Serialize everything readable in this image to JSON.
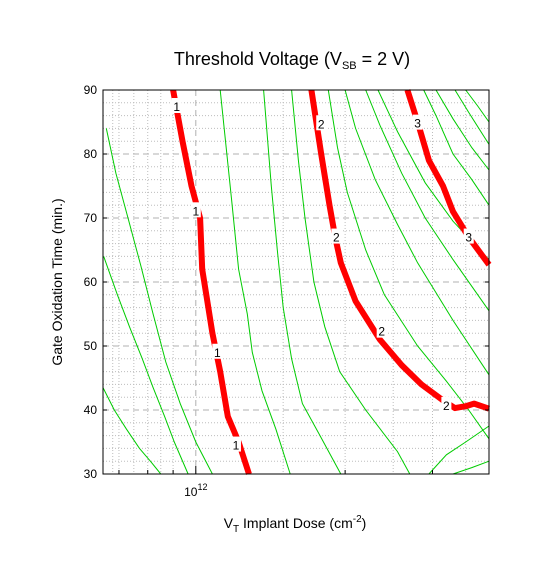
{
  "chart_data": {
    "type": "line",
    "title": {
      "main": "Threshold Voltage (V",
      "sub": "SB",
      "tail": " = 2 V)"
    },
    "xlabel": {
      "main": "V",
      "sub": "T",
      "tail": " Implant Dose (cm",
      "sup": "-2",
      "end": ")"
    },
    "ylabel": "Gate Oxidation Time (min.)",
    "xscale": "log",
    "xlim": [
      650000000000.0,
      3900000000000.0
    ],
    "ylim": [
      30,
      90
    ],
    "x_ticks": [
      {
        "value": 1000000000000.0,
        "base": "10",
        "exp": "12"
      }
    ],
    "x_minor_ticks": [
      700000000000.0,
      800000000000.0,
      900000000000.0,
      2000000000000.0,
      3000000000000.0
    ],
    "y_ticks": [
      30,
      40,
      50,
      60,
      70,
      80,
      90
    ],
    "grid": true,
    "labeled_contours": [
      {
        "name": "1",
        "color": "#ff0000",
        "x": [
          900000000000.0,
          940000000000.0,
          980000000000.0,
          1020000000000.0,
          1030000000000.0,
          1050000000000.0,
          1080000000000.0,
          1120000000000.0,
          1160000000000.0,
          1220000000000.0,
          1280000000000.0
        ],
        "y": [
          90,
          82,
          75,
          70,
          62,
          58,
          52,
          46,
          39,
          35,
          30
        ],
        "labels": [
          {
            "x": 915000000000.0,
            "y": 87.5,
            "text": "1"
          },
          {
            "x": 1000000000000.0,
            "y": 71.2,
            "text": "1"
          },
          {
            "x": 1105000000000.0,
            "y": 49.1,
            "text": "1"
          },
          {
            "x": 1205000000000.0,
            "y": 34.6,
            "text": "1"
          }
        ]
      },
      {
        "name": "2",
        "color": "#ff0000",
        "x": [
          1710000000000.0,
          1790000000000.0,
          1860000000000.0,
          1910000000000.0,
          1960000000000.0,
          2100000000000.0,
          2350000000000.0,
          2600000000000.0,
          2850000000000.0,
          3150000000000.0,
          3330000000000.0,
          3500000000000.0,
          3640000000000.0,
          3900000000000.0
        ],
        "y": [
          90,
          80,
          72,
          67,
          63,
          57,
          51,
          47,
          44,
          41.5,
          40.3,
          40.6,
          41.0,
          40.2
        ],
        "labels": [
          {
            "x": 1790000000000.0,
            "y": 84.8,
            "text": "2"
          },
          {
            "x": 1920000000000.0,
            "y": 67.1,
            "text": "2"
          },
          {
            "x": 2370000000000.0,
            "y": 52.4,
            "text": "2"
          },
          {
            "x": 3200000000000.0,
            "y": 40.8,
            "text": "2"
          }
        ]
      },
      {
        "name": "3",
        "color": "#ff0000",
        "x": [
          2670000000000.0,
          2800000000000.0,
          2950000000000.0,
          3150000000000.0,
          3300000000000.0,
          3550000000000.0,
          3900000000000.0
        ],
        "y": [
          90,
          85,
          79,
          75,
          71,
          67,
          62.7
        ],
        "labels": [
          {
            "x": 2800000000000.0,
            "y": 84.9,
            "text": "3"
          },
          {
            "x": 3550000000000.0,
            "y": 67.1,
            "text": "3"
          }
        ]
      }
    ],
    "unlabeled_contours": {
      "color": "#00cc00",
      "lines": [
        {
          "x": [
            650000000000.0,
            685000000000.0,
            725000000000.0,
            770000000000.0,
            810000000000.0,
            850000000000.0
          ],
          "y": [
            43.5,
            40,
            37,
            34,
            32,
            30
          ]
        },
        {
          "x": [
            652000000000.0,
            695000000000.0,
            735000000000.0,
            780000000000.0,
            820000000000.0,
            865000000000.0,
            905000000000.0,
            965000000000.0
          ],
          "y": [
            64,
            58,
            53,
            48,
            43.5,
            39,
            35,
            30
          ]
        },
        {
          "x": [
            660000000000.0,
            690000000000.0,
            730000000000.0,
            775000000000.0,
            820000000000.0,
            870000000000.0,
            930000000000.0,
            1000000000000.0,
            1080000000000.0
          ],
          "y": [
            84,
            77,
            70,
            62.5,
            55,
            47.5,
            41,
            35,
            30
          ]
        },
        {
          "x": [
            1120000000000.0,
            1180000000000.0,
            1220000000000.0,
            1270000000000.0,
            1300000000000.0,
            1360000000000.0,
            1450000000000.0,
            1550000000000.0
          ],
          "y": [
            90,
            73,
            62,
            55,
            49,
            43,
            37,
            30
          ]
        },
        {
          "x": [
            1370000000000.0,
            1420000000000.0,
            1460000000000.0,
            1500000000000.0,
            1560000000000.0,
            1640000000000.0,
            1780000000000.0,
            1960000000000.0
          ],
          "y": [
            90,
            75,
            65,
            56,
            48,
            41,
            36,
            30
          ]
        },
        {
          "x": [
            1560000000000.0,
            1610000000000.0,
            1660000000000.0,
            1730000000000.0,
            1820000000000.0,
            1950000000000.0,
            2200000000000.0,
            2550000000000.0,
            2700000000000.0
          ],
          "y": [
            90,
            79,
            70,
            60,
            53,
            46,
            40,
            33.5,
            30
          ]
        },
        {
          "x": [
            1850000000000.0,
            1930000000000.0,
            2020000000000.0,
            2200000000000.0,
            2400000000000.0,
            2800000000000.0,
            3200000000000.0,
            3550000000000.0,
            3900000000000.0
          ],
          "y": [
            90,
            81,
            74,
            65,
            58,
            50,
            44.5,
            40,
            35.5
          ]
        },
        {
          "x": [
            2000000000000.0,
            2100000000000.0,
            2300000000000.0,
            2550000000000.0,
            2800000000000.0,
            3300000000000.0,
            3900000000000.0
          ],
          "y": [
            90,
            84,
            76,
            69,
            63,
            54,
            45.5
          ]
        },
        {
          "x": [
            2200000000000.0,
            2350000000000.0,
            2600000000000.0,
            2900000000000.0,
            3300000000000.0,
            3900000000000.0
          ],
          "y": [
            90,
            84.5,
            77,
            70,
            63.5,
            55.5
          ]
        },
        {
          "x": [
            2330000000000.0,
            2550000000000.0,
            2900000000000.0,
            3300000000000.0,
            3900000000000.0
          ],
          "y": [
            90,
            83.5,
            75.5,
            69.5,
            63.5
          ]
        },
        {
          "x": [
            2880000000000.0,
            3050000000000.0,
            3300000000000.0,
            3600000000000.0,
            3900000000000.0
          ],
          "y": [
            90,
            86,
            80,
            76,
            72
          ]
        },
        {
          "x": [
            3050000000000.0,
            3300000000000.0,
            3600000000000.0,
            3900000000000.0
          ],
          "y": [
            90,
            85.5,
            81,
            77.5
          ]
        },
        {
          "x": [
            3330000000000.0,
            3550000000000.0,
            3900000000000.0
          ],
          "y": [
            90,
            86.5,
            81.5
          ]
        },
        {
          "x": [
            3500000000000.0,
            3700000000000.0,
            3900000000000.0
          ],
          "y": [
            90,
            87.5,
            85
          ]
        },
        {
          "x": [
            2950000000000.0,
            3200000000000.0,
            3500000000000.0,
            3900000000000.0
          ],
          "y": [
            30,
            33,
            35,
            37.5
          ]
        },
        {
          "x": [
            3300000000000.0,
            3600000000000.0,
            3900000000000.0
          ],
          "y": [
            30,
            31,
            32
          ]
        }
      ]
    }
  }
}
